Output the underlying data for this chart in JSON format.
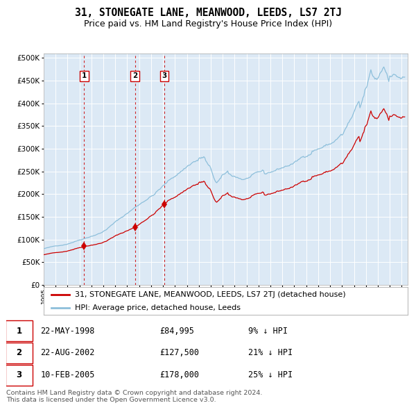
{
  "title": "31, STONEGATE LANE, MEANWOOD, LEEDS, LS7 2TJ",
  "subtitle": "Price paid vs. HM Land Registry's House Price Index (HPI)",
  "hpi_label": "HPI: Average price, detached house, Leeds",
  "property_label": "31, STONEGATE LANE, MEANWOOD, LEEDS, LS7 2TJ (detached house)",
  "sale_dates": [
    "22-MAY-1998",
    "22-AUG-2002",
    "10-FEB-2005"
  ],
  "sale_prices": [
    84995,
    127500,
    178000
  ],
  "sale_date_years": [
    1998.39,
    2002.64,
    2005.11
  ],
  "sale_hpi_pct": [
    "9% ↓ HPI",
    "21% ↓ HPI",
    "25% ↓ HPI"
  ],
  "vline_years": [
    1998.39,
    2002.64,
    2005.11
  ],
  "hpi_color": "#8dbfdb",
  "property_color": "#cc0000",
  "vline_color": "#cc0000",
  "axis_bg": "#dce9f5",
  "grid_color": "#ffffff",
  "ylim": [
    0,
    510000
  ],
  "xlim_start": 1995.0,
  "xlim_end": 2025.5,
  "footer": "Contains HM Land Registry data © Crown copyright and database right 2024.\nThis data is licensed under the Open Government Licence v3.0."
}
